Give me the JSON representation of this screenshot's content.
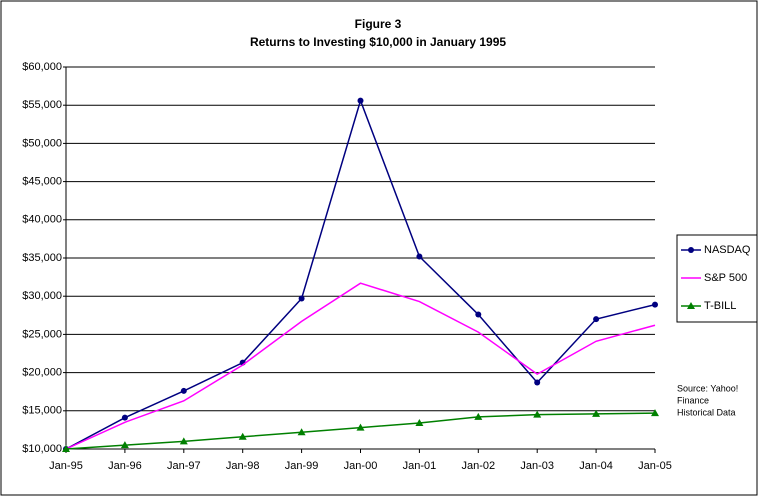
{
  "chart_data": {
    "type": "line",
    "title": "Figure 3",
    "subtitle": "Returns to Investing $10,000 in January 1995",
    "categories": [
      "Jan-95",
      "Jan-96",
      "Jan-97",
      "Jan-98",
      "Jan-99",
      "Jan-00",
      "Jan-01",
      "Jan-02",
      "Jan-03",
      "Jan-04",
      "Jan-05"
    ],
    "series": [
      {
        "name": "NASDAQ",
        "color": "#000080",
        "marker": "circle",
        "values": [
          10000,
          14100,
          17600,
          21300,
          29700,
          55600,
          35200,
          27600,
          18700,
          27000,
          28900
        ]
      },
      {
        "name": "S&P 500",
        "color": "#ff00ff",
        "marker": "none",
        "values": [
          10000,
          13500,
          16300,
          21000,
          26700,
          31700,
          29300,
          25300,
          19800,
          24100,
          26200
        ]
      },
      {
        "name": "T-BILL",
        "color": "#008000",
        "marker": "triangle",
        "values": [
          10000,
          10500,
          11000,
          11600,
          12200,
          12800,
          13400,
          14200,
          14500,
          14600,
          14700
        ]
      }
    ],
    "ylim": [
      10000,
      60000
    ],
    "yticks": [
      {
        "value": 10000,
        "label": "$10,000"
      },
      {
        "value": 15000,
        "label": "$15,000"
      },
      {
        "value": 20000,
        "label": "$20,000"
      },
      {
        "value": 25000,
        "label": "$25,000"
      },
      {
        "value": 30000,
        "label": "$30,000"
      },
      {
        "value": 35000,
        "label": "$35,000"
      },
      {
        "value": 40000,
        "label": "$40,000"
      },
      {
        "value": 45000,
        "label": "$45,000"
      },
      {
        "value": 50000,
        "label": "$50,000"
      },
      {
        "value": 55000,
        "label": "$55,000"
      },
      {
        "value": 60000,
        "label": "$60,000"
      }
    ],
    "grid": true,
    "legend": "right",
    "annotation": [
      "Source: Yahoo!",
      "Finance",
      "Historical Data"
    ]
  }
}
